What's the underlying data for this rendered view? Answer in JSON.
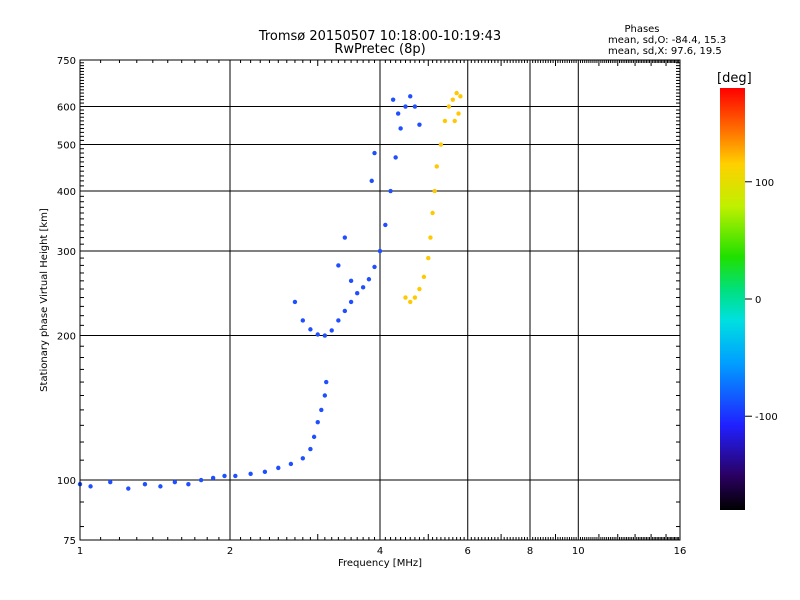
{
  "chart_data": {
    "type": "scatter",
    "title": "Tromsø 20150507 10:18:00-10:19:43",
    "subtitle": "RwPretec (8p)",
    "xlabel": "Frequency [MHz]",
    "ylabel": "Stationary phase Virtual Height [km]",
    "x_scale": "log",
    "y_scale": "log",
    "xlim": [
      1,
      16
    ],
    "ylim": [
      75,
      750
    ],
    "x_ticks": [
      1,
      2,
      4,
      6,
      8,
      10,
      16
    ],
    "x_tick_labels": [
      "1",
      "2",
      "4",
      "6",
      "8",
      "10",
      "16"
    ],
    "y_ticks": [
      75,
      100,
      200,
      300,
      400,
      500,
      600,
      750
    ],
    "y_tick_labels": [
      "75",
      "100",
      "200",
      "300",
      "400",
      "500",
      "600",
      "750"
    ],
    "grid": true,
    "stats": {
      "heading": "Phases",
      "o_line": "mean, sd,O: -84.4, 15.3",
      "x_line": "mean, sd,X:  97.6, 19.5"
    },
    "colorbar": {
      "label": "[deg]",
      "range": [
        -180,
        180
      ],
      "ticks": [
        100,
        0,
        -100
      ],
      "tick_labels": [
        "100",
        "0",
        "-100"
      ]
    },
    "series": [
      {
        "mode": "O",
        "color_phase_deg": -85,
        "points": [
          [
            1.0,
            98
          ],
          [
            1.05,
            97
          ],
          [
            1.15,
            99
          ],
          [
            1.25,
            96
          ],
          [
            1.35,
            98
          ],
          [
            1.45,
            97
          ],
          [
            1.55,
            99
          ],
          [
            1.65,
            98
          ],
          [
            1.75,
            100
          ],
          [
            1.85,
            101
          ],
          [
            1.95,
            102
          ],
          [
            2.05,
            102
          ],
          [
            2.2,
            103
          ],
          [
            2.35,
            104
          ],
          [
            2.5,
            106
          ],
          [
            2.65,
            108
          ],
          [
            2.8,
            111
          ],
          [
            2.9,
            116
          ],
          [
            2.95,
            123
          ],
          [
            3.0,
            132
          ],
          [
            3.05,
            140
          ],
          [
            3.1,
            150
          ],
          [
            3.12,
            160
          ],
          [
            2.7,
            235
          ],
          [
            2.8,
            215
          ],
          [
            2.9,
            206
          ],
          [
            3.0,
            201
          ],
          [
            3.1,
            200
          ],
          [
            3.2,
            205
          ],
          [
            3.3,
            215
          ],
          [
            3.4,
            225
          ],
          [
            3.5,
            235
          ],
          [
            3.6,
            245
          ],
          [
            3.7,
            252
          ],
          [
            3.8,
            262
          ],
          [
            3.9,
            278
          ],
          [
            4.0,
            300
          ],
          [
            4.1,
            340
          ],
          [
            4.2,
            400
          ],
          [
            4.3,
            470
          ],
          [
            4.4,
            540
          ],
          [
            4.5,
            600
          ],
          [
            4.6,
            630
          ],
          [
            4.7,
            600
          ],
          [
            4.8,
            550
          ],
          [
            3.3,
            280
          ],
          [
            3.4,
            320
          ],
          [
            3.5,
            260
          ],
          [
            3.85,
            420
          ],
          [
            3.9,
            480
          ],
          [
            4.25,
            620
          ],
          [
            4.35,
            580
          ]
        ]
      },
      {
        "mode": "X",
        "color_phase_deg": 98,
        "points": [
          [
            4.5,
            240
          ],
          [
            4.6,
            235
          ],
          [
            4.7,
            240
          ],
          [
            4.8,
            250
          ],
          [
            4.9,
            265
          ],
          [
            5.0,
            290
          ],
          [
            5.05,
            320
          ],
          [
            5.1,
            360
          ],
          [
            5.15,
            400
          ],
          [
            5.2,
            450
          ],
          [
            5.3,
            500
          ],
          [
            5.4,
            560
          ],
          [
            5.5,
            600
          ],
          [
            5.6,
            620
          ],
          [
            5.7,
            640
          ],
          [
            5.8,
            630
          ],
          [
            5.75,
            580
          ],
          [
            5.65,
            560
          ]
        ]
      }
    ]
  }
}
